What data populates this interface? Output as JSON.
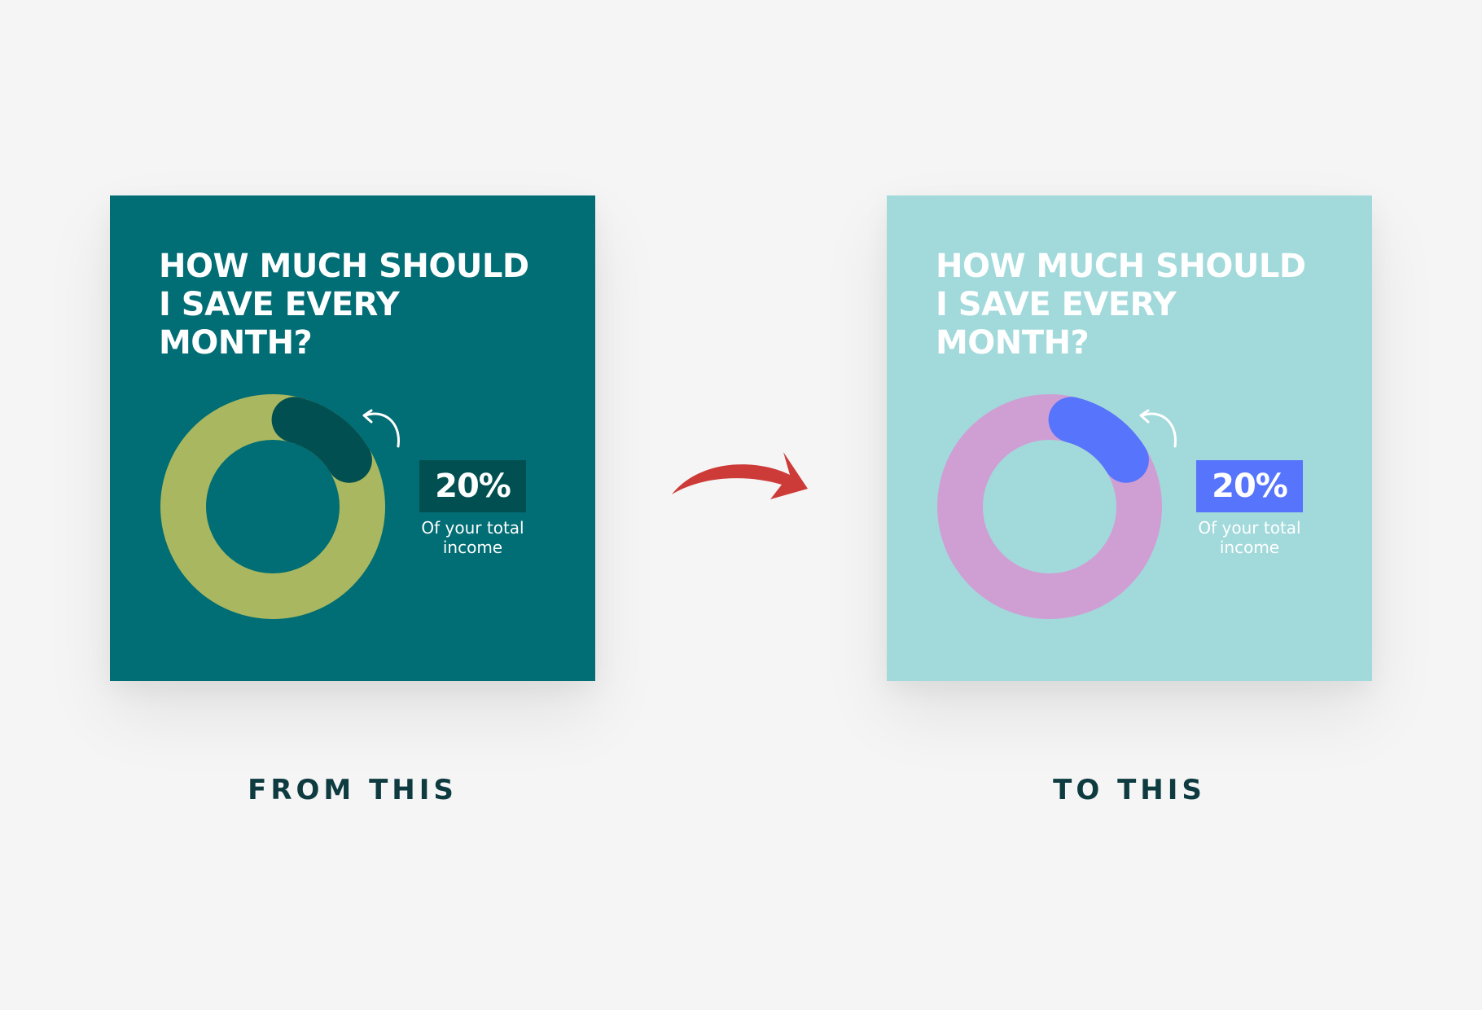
{
  "chart_data": [
    {
      "type": "pie",
      "title": "HOW MUCH SHOULD\nI SAVE EVERY\nMONTH?",
      "values": [
        20,
        80
      ],
      "value_label": "20%",
      "annotation": "Of your total\nincome",
      "caption": "FROM THIS",
      "colors": {
        "background": "#016d74",
        "ring": "#a9b860",
        "highlight": "#014f51",
        "badge": "#014f51",
        "title_text": "#ffffff",
        "badge_text": "#ffffff",
        "annotation_text": "#ffffff"
      }
    },
    {
      "type": "pie",
      "title": "HOW MUCH SHOULD\nI SAVE EVERY\nMONTH?",
      "values": [
        20,
        80
      ],
      "value_label": "20%",
      "annotation": "Of your total\nincome",
      "caption": "TO THIS",
      "colors": {
        "background": "#a2d9db",
        "ring": "#cf9fd4",
        "highlight": "#5674fc",
        "badge": "#5674fc",
        "title_text": "#ffffff",
        "badge_text": "#ffffff",
        "annotation_text": "#ffffff"
      }
    }
  ],
  "captions_color": "#0d3b40",
  "arrow_color": "#cd3b38",
  "icons": {
    "transition": "curved-arrow-right-icon",
    "rotate": "curved-arrow-icon"
  }
}
